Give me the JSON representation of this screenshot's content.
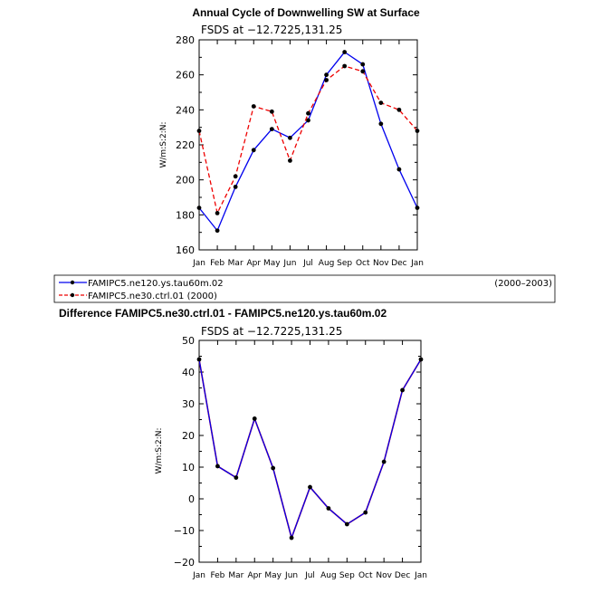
{
  "chart_data": [
    {
      "type": "line",
      "title": "Annual Cycle of Downwelling SW at Surface",
      "subtitle": "FSDS at −12.7225,131.25",
      "ylabel": "W/m:S:2:N:",
      "xlabel": "",
      "categories": [
        "Jan",
        "Feb",
        "Mar",
        "Apr",
        "May",
        "Jun",
        "Jul",
        "Aug",
        "Sep",
        "Oct",
        "Nov",
        "Dec",
        "Jan"
      ],
      "ylim": [
        160,
        280
      ],
      "yticks": [
        160,
        180,
        200,
        220,
        240,
        260,
        280
      ],
      "grid": false,
      "series": [
        {
          "name": "FAMIPC5.ne120.ys.tau60m.02",
          "note": "(2000–2003)",
          "color": "#0000ee",
          "style": "solid",
          "values": [
            184,
            171,
            196,
            217,
            229,
            224,
            234,
            260,
            273,
            266,
            232,
            206,
            184
          ]
        },
        {
          "name": "FAMIPC5.ne30.ctrl.01 (2000)",
          "note": "",
          "color": "#ee0000",
          "style": "dashed",
          "values": [
            228,
            181,
            202,
            242,
            239,
            211,
            238,
            257,
            265,
            262,
            244,
            240,
            228
          ]
        }
      ],
      "legend_position": "below"
    },
    {
      "type": "line",
      "title": "Difference FAMIPC5.ne30.ctrl.01 - FAMIPC5.ne120.ys.tau60m.02",
      "subtitle": "FSDS at −12.7225,131.25",
      "ylabel": "W/m:S:2:N:",
      "xlabel": "",
      "categories": [
        "Jan",
        "Feb",
        "Mar",
        "Apr",
        "May",
        "Jun",
        "Jul",
        "Aug",
        "Sep",
        "Oct",
        "Nov",
        "Dec",
        "Jan"
      ],
      "ylim": [
        -20,
        50
      ],
      "yticks": [
        -20,
        -10,
        0,
        10,
        20,
        30,
        40,
        50
      ],
      "grid": false,
      "series": [
        {
          "name": "",
          "color": "#0000ee",
          "overlay_color": "#ee0000",
          "style": "solid",
          "values": [
            44,
            10.3,
            6.7,
            25.3,
            9.7,
            -12.3,
            3.7,
            -3,
            -8,
            -4.3,
            11.7,
            34.3,
            44
          ]
        }
      ]
    }
  ]
}
